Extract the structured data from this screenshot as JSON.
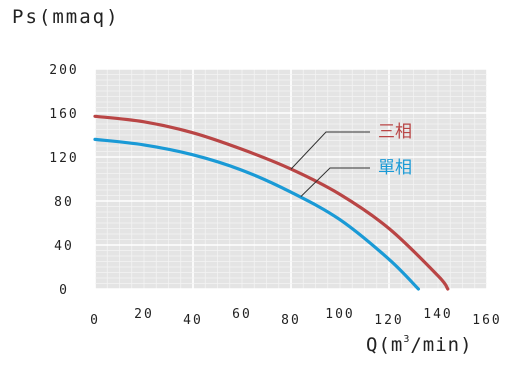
{
  "chart_data": {
    "type": "line",
    "ylabel": "Ps(mmaq)",
    "xlabel_main": "Q(m",
    "xlabel_sup": "3",
    "xlabel_tail": "/min)",
    "xlim": [
      0,
      160
    ],
    "ylim": [
      0,
      200
    ],
    "x_ticks": [
      "0",
      "20",
      "40",
      "60",
      "80",
      "100",
      "120",
      "140",
      "160"
    ],
    "y_ticks": [
      "200",
      "160",
      "120",
      "80",
      "40",
      "0"
    ],
    "grid": true,
    "series": [
      {
        "name": "三相",
        "color": "#b94545",
        "x": [
          0,
          20,
          40,
          60,
          80,
          100,
          120,
          140,
          144
        ],
        "y": [
          157,
          152,
          142,
          127,
          109,
          86,
          55,
          12,
          0
        ]
      },
      {
        "name": "單相",
        "color": "#1a9ad6",
        "x": [
          0,
          20,
          40,
          60,
          80,
          100,
          120,
          132
        ],
        "y": [
          136,
          131,
          122,
          108,
          88,
          63,
          27,
          0
        ]
      }
    ]
  }
}
